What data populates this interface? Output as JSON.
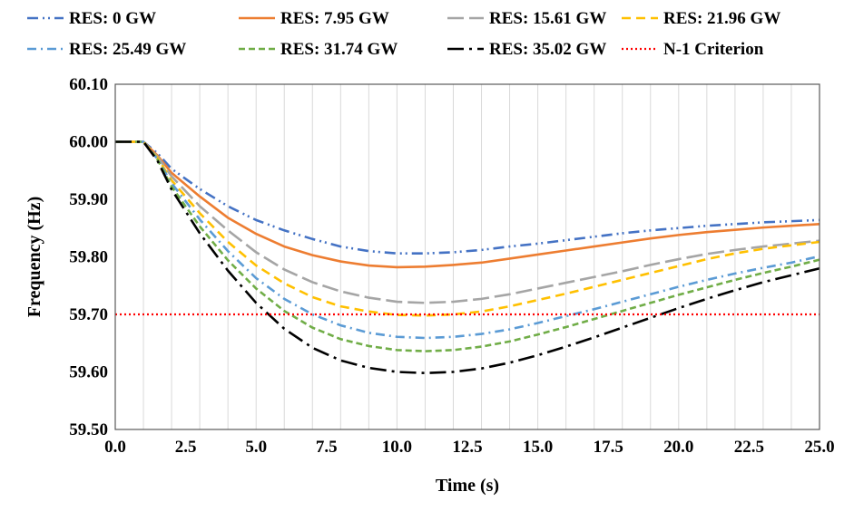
{
  "chart_data": {
    "type": "line",
    "xlabel": "Time (s)",
    "ylabel": "Frequency (Hz)",
    "xlim": [
      0,
      25
    ],
    "ylim": [
      59.5,
      60.1
    ],
    "x_ticks": [
      "0.0",
      "2.5",
      "5.0",
      "7.5",
      "10.0",
      "12.5",
      "15.0",
      "17.5",
      "20.0",
      "22.5",
      "25.0"
    ],
    "y_ticks": [
      "59.50",
      "59.60",
      "59.70",
      "59.80",
      "59.90",
      "60.00",
      "60.10"
    ],
    "grid": "vertical",
    "legend_position": "top",
    "series": [
      {
        "name": "RES: 0 GW",
        "color": "#4472C4",
        "dash": "dashdotdot",
        "x": [
          0,
          1,
          1.5,
          2,
          3,
          4,
          5,
          6,
          7,
          8,
          9,
          10,
          11,
          12,
          13,
          14,
          15,
          16,
          17,
          18,
          19,
          20,
          21,
          22,
          23,
          24,
          25
        ],
        "y": [
          60.0,
          60.0,
          59.98,
          59.953,
          59.918,
          59.888,
          59.864,
          59.846,
          59.831,
          59.818,
          59.81,
          59.806,
          59.806,
          59.808,
          59.812,
          59.818,
          59.823,
          59.829,
          59.835,
          59.841,
          59.846,
          59.85,
          59.854,
          59.857,
          59.86,
          59.862,
          59.864
        ]
      },
      {
        "name": "RES: 7.95 GW",
        "color": "#ED7D31",
        "dash": "solid",
        "x": [
          0,
          1,
          1.5,
          2,
          3,
          4,
          5,
          6,
          7,
          8,
          9,
          10,
          11,
          12,
          13,
          14,
          15,
          16,
          17,
          18,
          19,
          20,
          21,
          22,
          23,
          24,
          25
        ],
        "y": [
          60.0,
          60.0,
          59.976,
          59.946,
          59.905,
          59.868,
          59.84,
          59.818,
          59.803,
          59.792,
          59.785,
          59.782,
          59.783,
          59.786,
          59.79,
          59.797,
          59.804,
          59.811,
          59.818,
          59.825,
          59.832,
          59.838,
          59.843,
          59.847,
          59.851,
          59.854,
          59.857
        ]
      },
      {
        "name": "RES: 15.61 GW",
        "color": "#A5A5A5",
        "dash": "longdash",
        "x": [
          0,
          1,
          1.5,
          2,
          3,
          4,
          5,
          6,
          7,
          8,
          9,
          10,
          11,
          12,
          13,
          14,
          15,
          16,
          17,
          18,
          19,
          20,
          21,
          22,
          23,
          24,
          25
        ],
        "y": [
          60.0,
          60.0,
          59.974,
          59.94,
          59.888,
          59.846,
          59.808,
          59.778,
          59.756,
          59.74,
          59.729,
          59.722,
          59.72,
          59.722,
          59.727,
          59.735,
          59.745,
          59.755,
          59.765,
          59.775,
          59.786,
          59.796,
          59.805,
          59.812,
          59.818,
          59.823,
          59.828
        ]
      },
      {
        "name": "RES: 21.96 GW",
        "color": "#FFC000",
        "dash": "dash",
        "x": [
          0,
          1,
          1.5,
          2,
          3,
          4,
          5,
          6,
          7,
          8,
          9,
          10,
          11,
          12,
          13,
          14,
          15,
          16,
          17,
          18,
          19,
          20,
          21,
          22,
          23,
          24,
          25
        ],
        "y": [
          60.0,
          60.0,
          59.972,
          59.933,
          59.876,
          59.826,
          59.785,
          59.754,
          59.73,
          59.714,
          59.705,
          59.699,
          59.698,
          59.7,
          59.705,
          59.714,
          59.725,
          59.736,
          59.748,
          59.76,
          59.772,
          59.784,
          59.796,
          59.806,
          59.814,
          59.82,
          59.826
        ]
      },
      {
        "name": "RES: 25.49 GW",
        "color": "#5B9BD5",
        "dash": "dashdot",
        "x": [
          0,
          1,
          1.5,
          2,
          3,
          4,
          5,
          6,
          7,
          8,
          9,
          10,
          11,
          12,
          13,
          14,
          15,
          16,
          17,
          18,
          19,
          20,
          21,
          22,
          23,
          24,
          25
        ],
        "y": [
          60.0,
          60.0,
          59.97,
          59.928,
          59.865,
          59.81,
          59.763,
          59.727,
          59.7,
          59.681,
          59.668,
          59.661,
          59.659,
          59.661,
          59.666,
          59.674,
          59.685,
          59.697,
          59.709,
          59.722,
          59.735,
          59.748,
          59.76,
          59.771,
          59.781,
          59.79,
          59.801
        ]
      },
      {
        "name": "RES: 31.74 GW",
        "color": "#70AD47",
        "dash": "mediumdash",
        "x": [
          0,
          1,
          1.5,
          2,
          3,
          4,
          5,
          6,
          7,
          8,
          9,
          10,
          11,
          12,
          13,
          14,
          15,
          16,
          17,
          18,
          19,
          20,
          21,
          22,
          23,
          24,
          25
        ],
        "y": [
          60.0,
          60.0,
          59.969,
          59.922,
          59.853,
          59.794,
          59.745,
          59.706,
          59.677,
          59.657,
          59.645,
          59.638,
          59.636,
          59.638,
          59.644,
          59.653,
          59.665,
          59.678,
          59.692,
          59.706,
          59.72,
          59.734,
          59.747,
          59.76,
          59.772,
          59.783,
          59.795
        ]
      },
      {
        "name": "RES: 35.02 GW",
        "color": "#000000",
        "dash": "longdashdot",
        "x": [
          0,
          1,
          1.5,
          2,
          3,
          4,
          5,
          6,
          7,
          8,
          9,
          10,
          11,
          12,
          13,
          14,
          15,
          16,
          17,
          18,
          19,
          20,
          21,
          22,
          23,
          24,
          25
        ],
        "y": [
          60.0,
          60.0,
          59.967,
          59.917,
          59.841,
          59.776,
          59.72,
          59.675,
          59.642,
          59.62,
          59.607,
          59.6,
          59.598,
          59.6,
          59.606,
          59.616,
          59.629,
          59.644,
          59.66,
          59.677,
          59.694,
          59.711,
          59.727,
          59.742,
          59.756,
          59.768,
          59.78
        ]
      },
      {
        "name": "N-1 Criterion",
        "color": "#FF0000",
        "dash": "dot",
        "x": [
          0,
          25
        ],
        "y": [
          59.7,
          59.7
        ]
      }
    ]
  }
}
